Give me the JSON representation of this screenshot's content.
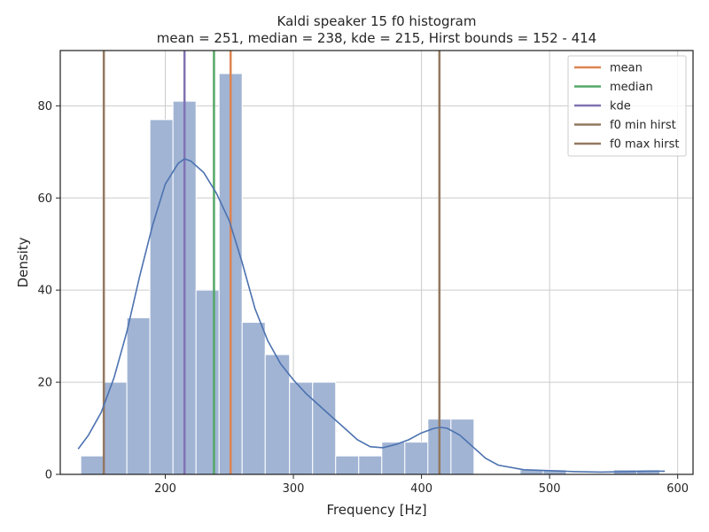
{
  "chart_data": {
    "type": "histogram",
    "title": "Kaldi speaker 15 f0 histogram",
    "subtitle": "mean = 251, median = 238, kde = 215, Hirst bounds = 152 - 414",
    "xlabel": "Frequency [Hz]",
    "ylabel": "Density",
    "xlim": [
      118,
      612
    ],
    "ylim": [
      0,
      92
    ],
    "xticks": [
      200,
      300,
      400,
      500,
      600
    ],
    "yticks": [
      0,
      20,
      40,
      60,
      80
    ],
    "grid": true,
    "legend_position": "top-right",
    "bins": [
      {
        "start": 134,
        "end": 152,
        "value": 4
      },
      {
        "start": 152,
        "end": 170,
        "value": 20
      },
      {
        "start": 170,
        "end": 188,
        "value": 34
      },
      {
        "start": 188,
        "end": 206,
        "value": 77
      },
      {
        "start": 206,
        "end": 224,
        "value": 81
      },
      {
        "start": 224,
        "end": 242,
        "value": 40
      },
      {
        "start": 242,
        "end": 260,
        "value": 87
      },
      {
        "start": 260,
        "end": 278,
        "value": 33
      },
      {
        "start": 278,
        "end": 297,
        "value": 26
      },
      {
        "start": 297,
        "end": 315,
        "value": 20
      },
      {
        "start": 315,
        "end": 333,
        "value": 20
      },
      {
        "start": 333,
        "end": 351,
        "value": 4
      },
      {
        "start": 351,
        "end": 369,
        "value": 4
      },
      {
        "start": 369,
        "end": 387,
        "value": 7
      },
      {
        "start": 387,
        "end": 405,
        "value": 7
      },
      {
        "start": 405,
        "end": 423,
        "value": 12
      },
      {
        "start": 423,
        "end": 441,
        "value": 12
      },
      {
        "start": 441,
        "end": 459,
        "value": 0
      },
      {
        "start": 459,
        "end": 477,
        "value": 0
      },
      {
        "start": 477,
        "end": 495,
        "value": 1
      },
      {
        "start": 495,
        "end": 513,
        "value": 1
      },
      {
        "start": 513,
        "end": 532,
        "value": 0
      },
      {
        "start": 532,
        "end": 550,
        "value": 0
      },
      {
        "start": 550,
        "end": 568,
        "value": 1
      },
      {
        "start": 568,
        "end": 586,
        "value": 1
      }
    ],
    "kde": {
      "x": [
        132,
        140,
        150,
        160,
        170,
        180,
        190,
        200,
        210,
        215,
        220,
        230,
        240,
        250,
        260,
        270,
        280,
        290,
        300,
        310,
        320,
        330,
        340,
        350,
        360,
        370,
        380,
        390,
        400,
        410,
        415,
        420,
        430,
        440,
        450,
        460,
        480,
        500,
        520,
        540,
        560,
        580,
        590
      ],
      "y": [
        5.5,
        8.5,
        13.5,
        21,
        31,
        43,
        54,
        63,
        67.5,
        68.5,
        68,
        65.5,
        61,
        55,
        46,
        36,
        29,
        24,
        20.5,
        17.5,
        15,
        12.5,
        10,
        7.5,
        6,
        5.8,
        6.5,
        7.5,
        9,
        10,
        10.2,
        10,
        8.5,
        6,
        3.5,
        2,
        1,
        0.8,
        0.6,
        0.5,
        0.6,
        0.7,
        0.7
      ]
    },
    "vlines": [
      {
        "name": "mean",
        "x": 251,
        "color": "#dd8452"
      },
      {
        "name": "median",
        "x": 238,
        "color": "#55a868"
      },
      {
        "name": "kde",
        "x": 215,
        "color": "#8172b3"
      },
      {
        "name": "f0 min hirst",
        "x": 152,
        "color": "#937860"
      },
      {
        "name": "f0 max hirst",
        "x": 414,
        "color": "#937860"
      }
    ],
    "colors": {
      "bar_fill": "#a1b4d4",
      "bar_edge": "#ffffff",
      "kde_line": "#4c72b0",
      "grid": "#cccccc",
      "axes": "#262626"
    }
  }
}
